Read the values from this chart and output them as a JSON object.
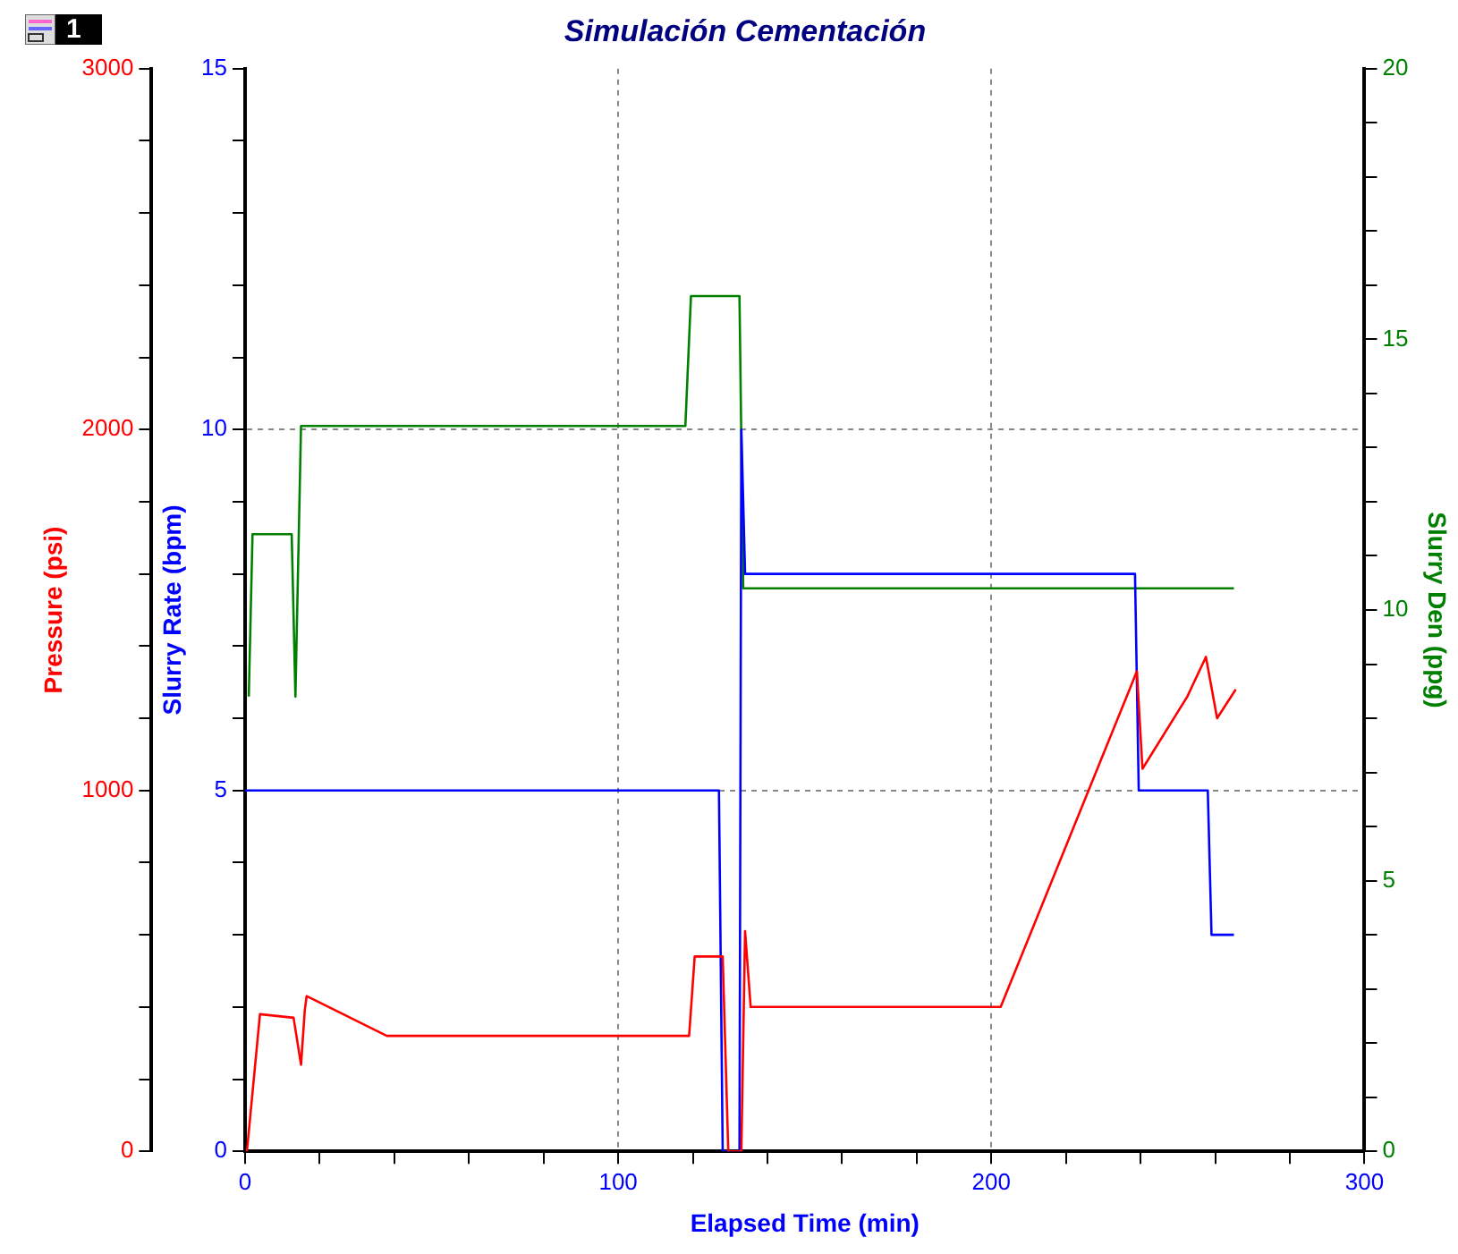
{
  "chart_data": {
    "type": "line",
    "title": "Simulación Cementación",
    "xlabel": "Elapsed Time (min)",
    "ylabel": "Pressure (psi)",
    "y2label": "Slurry Rate (bpm)",
    "y3label": "Slurry Den (ppg)",
    "annotations": [
      "1"
    ],
    "grid": true,
    "legend": false,
    "xlim": [
      0,
      300
    ],
    "xticks": [
      0,
      {
        "value": 20,
        "label": null
      },
      {
        "value": 40,
        "label": null
      },
      {
        "value": 60,
        "label": null
      },
      {
        "value": 80,
        "label": null
      },
      100,
      {
        "value": 120,
        "label": null
      },
      {
        "value": 140,
        "label": null
      },
      {
        "value": 160,
        "label": null
      },
      {
        "value": 180,
        "label": null
      },
      200,
      {
        "value": 220,
        "label": null
      },
      {
        "value": 240,
        "label": null
      },
      {
        "value": 260,
        "label": null
      },
      {
        "value": 280,
        "label": null
      },
      300
    ],
    "ylim": [
      0,
      3000
    ],
    "yticks": [
      0,
      {
        "value": 200,
        "label": null
      },
      {
        "value": 400,
        "label": null
      },
      {
        "value": 600,
        "label": null
      },
      {
        "value": 800,
        "label": null
      },
      1000,
      {
        "value": 1200,
        "label": null
      },
      {
        "value": 1400,
        "label": null
      },
      {
        "value": 1600,
        "label": null
      },
      {
        "value": 1800,
        "label": null
      },
      2000,
      {
        "value": 2200,
        "label": null
      },
      {
        "value": 2400,
        "label": null
      },
      {
        "value": 2600,
        "label": null
      },
      {
        "value": 2800,
        "label": null
      },
      3000
    ],
    "y2lim": [
      0,
      15
    ],
    "y2ticks": [
      0,
      {
        "value": 1,
        "label": null
      },
      {
        "value": 2,
        "label": null
      },
      {
        "value": 3,
        "label": null
      },
      {
        "value": 4,
        "label": null
      },
      5,
      {
        "value": 6,
        "label": null
      },
      {
        "value": 7,
        "label": null
      },
      {
        "value": 8,
        "label": null
      },
      {
        "value": 9,
        "label": null
      },
      10,
      {
        "value": 11,
        "label": null
      },
      {
        "value": 12,
        "label": null
      },
      {
        "value": 13,
        "label": null
      },
      {
        "value": 14,
        "label": null
      },
      15
    ],
    "y3lim": [
      0,
      20
    ],
    "y3ticks": [
      0,
      {
        "value": 1,
        "label": null
      },
      {
        "value": 2,
        "label": null
      },
      {
        "value": 3,
        "label": null
      },
      {
        "value": 4,
        "label": null
      },
      5,
      {
        "value": 6,
        "label": null
      },
      {
        "value": 7,
        "label": null
      },
      {
        "value": 8,
        "label": null
      },
      {
        "value": 9,
        "label": null
      },
      10,
      {
        "value": 11,
        "label": null
      },
      {
        "value": 12,
        "label": null
      },
      {
        "value": 13,
        "label": null
      },
      {
        "value": 14,
        "label": null
      },
      15,
      {
        "value": 16,
        "label": null
      },
      {
        "value": 17,
        "label": null
      },
      {
        "value": 18,
        "label": null
      },
      {
        "value": 19,
        "label": null
      },
      20
    ],
    "series": [
      {
        "color": "#ff0000",
        "axis": "y",
        "x": [
          0.5,
          4,
          13,
          15,
          16,
          16.5,
          38,
          119,
          120.5,
          128,
          129.5,
          133,
          134,
          135.5,
          202.5,
          239,
          240.5,
          252.5,
          257.5,
          260.5,
          265.5
        ],
        "values": [
          0,
          380,
          370,
          240,
          390,
          430,
          320,
          320,
          540,
          540,
          0,
          0,
          610,
          400,
          400,
          1330,
          1060,
          1260,
          1370,
          1200,
          1280
        ]
      },
      {
        "color": "#0000ff",
        "axis": "y2",
        "x": [
          0,
          127,
          128,
          132.5,
          133,
          134,
          238.5,
          239.5,
          258,
          259,
          265
        ],
        "values": [
          5,
          5,
          0,
          0,
          10,
          8,
          8,
          5,
          5,
          3,
          3
        ]
      },
      {
        "color": "#008000",
        "axis": "y3",
        "x": [
          1,
          2,
          12.5,
          13.5,
          15,
          118,
          119.5,
          132.5,
          133.5,
          265
        ],
        "values": [
          8.4,
          11.4,
          11.4,
          8.4,
          13.4,
          13.4,
          15.8,
          15.8,
          10.4,
          10.4
        ]
      }
    ]
  }
}
